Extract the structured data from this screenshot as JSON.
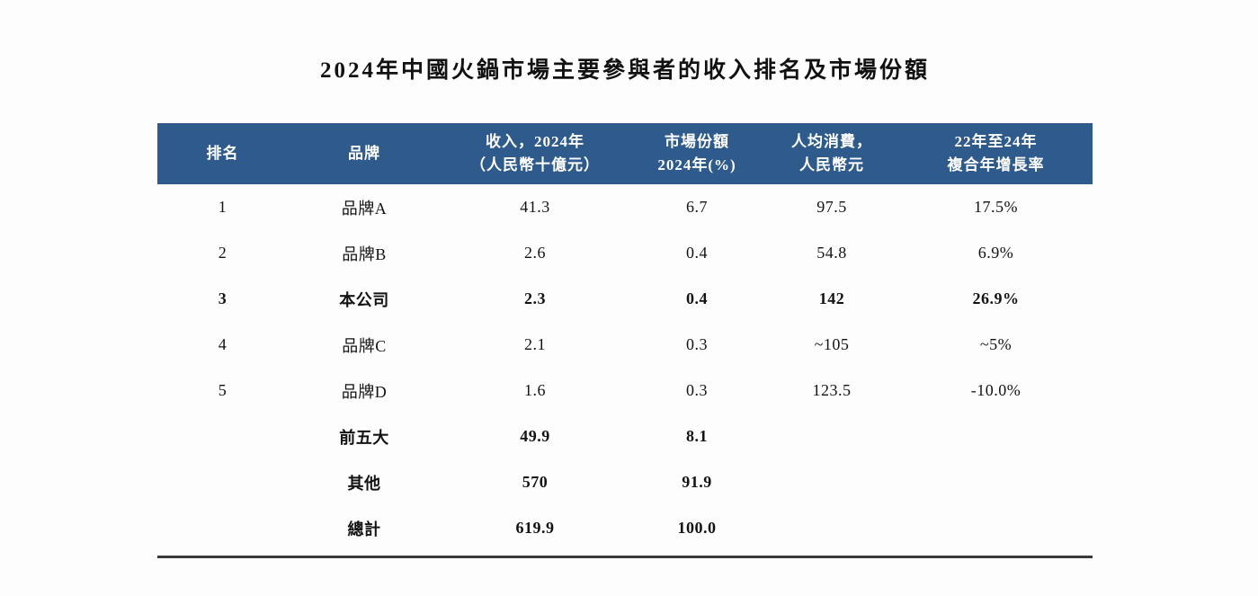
{
  "page": {
    "title": "2024年中國火鍋市場主要參與者的收入排名及市場份額"
  },
  "theme": {
    "header_bg": "#2e5a8c",
    "header_text": "#ffffff",
    "body_text": "#131313",
    "rule_color": "#3a3a3a"
  },
  "table": {
    "headers": [
      {
        "line1": "排名",
        "line2": ""
      },
      {
        "line1": "品牌",
        "line2": ""
      },
      {
        "line1": "收入，2024年",
        "line2": "（人民幣十億元）"
      },
      {
        "line1": "市場份額",
        "line2": "2024年(%)"
      },
      {
        "line1": "人均消費，",
        "line2": "人民幣元"
      },
      {
        "line1": "22年至24年",
        "line2": "複合年增長率"
      }
    ],
    "rows": [
      {
        "rank": "1",
        "brand": "品牌A",
        "revenue": "41.3",
        "share": "6.7",
        "per_capita": "97.5",
        "cagr": "17.5%",
        "bold": false
      },
      {
        "rank": "2",
        "brand": "品牌B",
        "revenue": "2.6",
        "share": "0.4",
        "per_capita": "54.8",
        "cagr": "6.9%",
        "bold": false
      },
      {
        "rank": "3",
        "brand": "本公司",
        "revenue": "2.3",
        "share": "0.4",
        "per_capita": "142",
        "cagr": "26.9%",
        "bold": true
      },
      {
        "rank": "4",
        "brand": "品牌C",
        "revenue": "2.1",
        "share": "0.3",
        "per_capita": "~105",
        "cagr": "~5%",
        "bold": false
      },
      {
        "rank": "5",
        "brand": "品牌D",
        "revenue": "1.6",
        "share": "0.3",
        "per_capita": "123.5",
        "cagr": "-10.0%",
        "bold": false
      },
      {
        "rank": "",
        "brand": "前五大",
        "revenue": "49.9",
        "share": "8.1",
        "per_capita": "",
        "cagr": "",
        "bold": true
      },
      {
        "rank": "",
        "brand": "其他",
        "revenue": "570",
        "share": "91.9",
        "per_capita": "",
        "cagr": "",
        "bold": true
      },
      {
        "rank": "",
        "brand": "總計",
        "revenue": "619.9",
        "share": "100.0",
        "per_capita": "",
        "cagr": "",
        "bold": true
      }
    ]
  }
}
